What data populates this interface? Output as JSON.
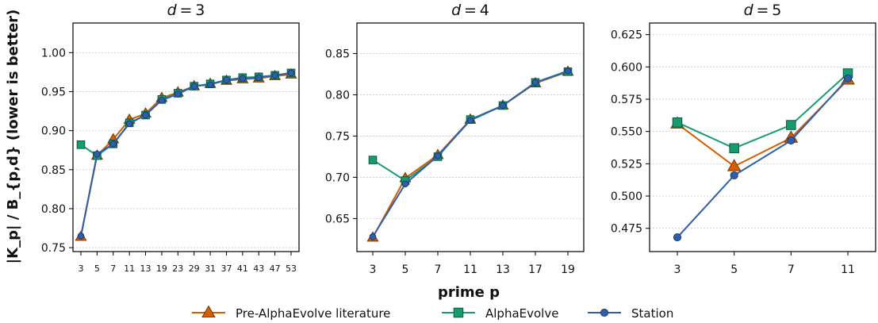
{
  "chart_data": {
    "type": "line",
    "ylabel": "|K_p| / B_{p,d} (lower is better)",
    "xlabel": "prime p",
    "colors": {
      "Pre-AlphaEvolve literature": "#d45f00",
      "AlphaEvolve": "#179c72",
      "Station": "#2f5faa"
    },
    "legend": {
      "placement": "bottom-center",
      "entries": [
        "Pre-AlphaEvolve literature",
        "AlphaEvolve",
        "Station"
      ]
    },
    "panels": [
      {
        "title_var": "d",
        "title_val": "3",
        "x": [
          3,
          5,
          7,
          11,
          13,
          19,
          23,
          29,
          31,
          37,
          41,
          43,
          47,
          53
        ],
        "xscale": "categorical",
        "ylim": [
          0.745,
          1.038
        ],
        "yticks": [
          "0.75",
          "0.80",
          "0.85",
          "0.90",
          "0.95",
          "1.00"
        ],
        "grid": true,
        "series": [
          {
            "name": "Pre-AlphaEvolve literature",
            "values": [
              0.764,
              0.868,
              0.889,
              0.914,
              0.922,
              0.942,
              0.949,
              0.957,
              0.96,
              0.964,
              0.966,
              0.967,
              0.97,
              0.972
            ]
          },
          {
            "name": "AlphaEvolve",
            "values": [
              0.882,
              0.868,
              0.883,
              0.91,
              0.92,
              0.94,
              0.948,
              0.957,
              0.96,
              0.965,
              0.968,
              0.969,
              0.971,
              0.974
            ]
          },
          {
            "name": "Station",
            "values": [
              0.765,
              0.87,
              0.883,
              0.909,
              0.92,
              0.939,
              0.947,
              0.957,
              0.959,
              0.965,
              0.967,
              0.968,
              0.971,
              0.974
            ]
          }
        ]
      },
      {
        "title_var": "d",
        "title_val": "4",
        "x": [
          3,
          5,
          7,
          11,
          13,
          17,
          19
        ],
        "xscale": "categorical",
        "ylim": [
          0.61,
          0.887
        ],
        "yticks": [
          "0.65",
          "0.70",
          "0.75",
          "0.80",
          "0.85"
        ],
        "grid": true,
        "series": [
          {
            "name": "Pre-AlphaEvolve literature",
            "values": [
              0.627,
              0.699,
              0.727,
              0.77,
              0.787,
              0.814,
              0.828
            ]
          },
          {
            "name": "AlphaEvolve",
            "values": [
              0.721,
              0.696,
              0.725,
              0.77,
              0.787,
              0.815,
              0.828
            ]
          },
          {
            "name": "Station",
            "values": [
              0.628,
              0.692,
              0.726,
              0.769,
              0.787,
              0.815,
              0.829
            ]
          }
        ]
      },
      {
        "title_var": "d",
        "title_val": "5",
        "x": [
          3,
          5,
          7,
          11
        ],
        "xscale": "categorical",
        "ylim": [
          0.457,
          0.634
        ],
        "yticks": [
          "0.475",
          "0.500",
          "0.525",
          "0.550",
          "0.575",
          "0.600",
          "0.625"
        ],
        "grid": true,
        "series": [
          {
            "name": "Pre-AlphaEvolve literature",
            "values": [
              0.556,
              0.523,
              0.545,
              0.59
            ]
          },
          {
            "name": "AlphaEvolve",
            "values": [
              0.557,
              0.537,
              0.555,
              0.595
            ]
          },
          {
            "name": "Station",
            "values": [
              0.468,
              0.516,
              0.543,
              0.591
            ]
          }
        ]
      }
    ]
  }
}
